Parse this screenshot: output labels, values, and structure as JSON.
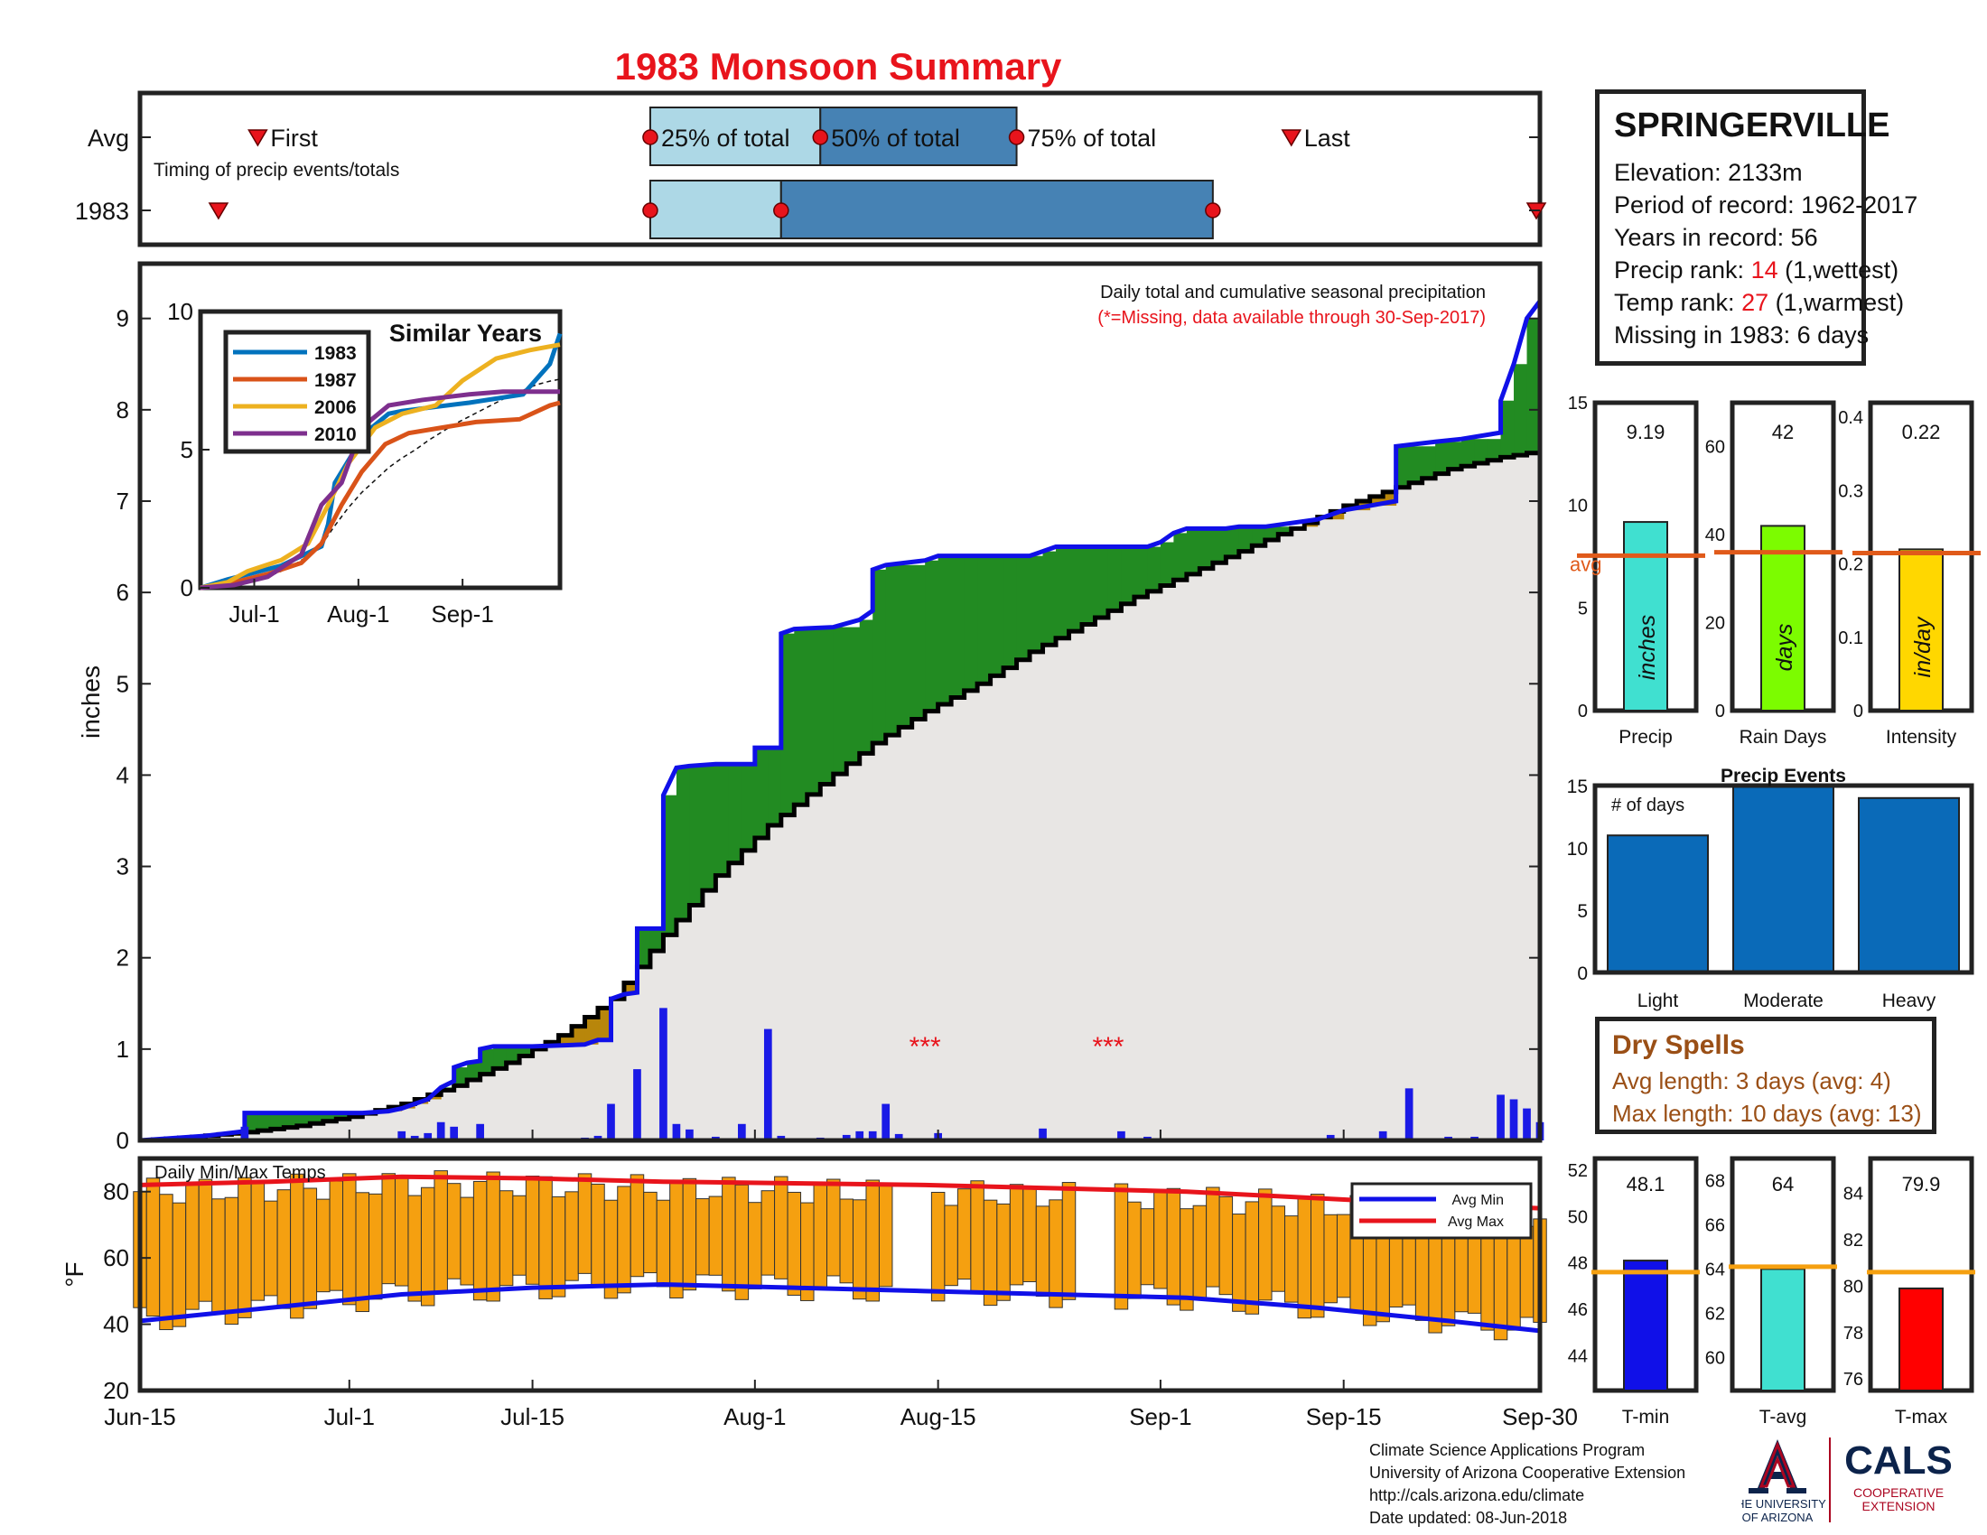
{
  "title": "1983 Monsoon Summary",
  "timing": {
    "row_labels": [
      "Avg",
      "1983"
    ],
    "first_label": "First",
    "last_label": "Last",
    "q25_label": "25% of total",
    "q50_label": "50% of total",
    "q75_label": "75% of total",
    "subtitle": "Timing of precip events/totals",
    "avg": {
      "first": 9,
      "q25": 39,
      "q50": 52,
      "q75": 67,
      "last": 88
    },
    "y1983": {
      "first": 6,
      "q25": 39,
      "q50": 49,
      "q75": 82,
      "last": 107
    }
  },
  "station": {
    "name": "SPRINGERVILLE",
    "elevation": "Elevation: 2133m",
    "period": "Period of record: 1962-2017",
    "years": "Years in record: 56",
    "precip_rank_prefix": "Precip rank: ",
    "precip_rank_value": "14",
    "precip_rank_suffix": " (1,wettest)",
    "temp_rank_prefix": "Temp rank: ",
    "temp_rank_value": "27",
    "temp_rank_suffix": " (1,warmest)",
    "missing": "Missing in 1983: 6 days"
  },
  "dry_spells": {
    "title": "Dry Spells",
    "avg_length": "Avg length: 3 days (avg: 4)",
    "max_length": "Max length: 10 days (avg: 13)"
  },
  "credits": {
    "line1": "Climate Science Applications Program",
    "line2": "University of Arizona Cooperative Extension",
    "line3": "http://cals.arizona.edu/climate",
    "line4": " Date updated: 08-Jun-2018",
    "ua_line1": "THE UNIVERSITY",
    "ua_line2": "OF ARIZONA",
    "cals": "CALS",
    "cals_sub1": "COOPERATIVE",
    "cals_sub2": "EXTENSION"
  },
  "colors": {
    "observed": "#1010e8",
    "above_avg": "#228b22",
    "below_avg": "#b8860b",
    "avg_fill": "#e8e6e4",
    "avg_line": "#000000",
    "daily_bar": "#1a1ae6",
    "temp_bar": "#f5a010",
    "avg_min": "#1010e8",
    "avg_max": "#e8141c",
    "light_blue": "#add8e6",
    "steel_blue": "#4682b4",
    "events_bar": "#0a6ab8"
  },
  "chart_data": [
    {
      "id": "cumulative_precip",
      "type": "area",
      "annotation1": "Daily total and cumulative seasonal precipitation",
      "annotation2": "(*=Missing, data available through 30-Sep-2017)",
      "ylabel": "inches",
      "ylim": [
        0,
        9.6
      ],
      "yticks": [
        0,
        1,
        2,
        3,
        4,
        5,
        6,
        7,
        8,
        9
      ],
      "xlim": [
        0,
        107
      ],
      "xticks": [
        {
          "day": 0,
          "label": "Jun-15"
        },
        {
          "day": 16,
          "label": "Jul-1"
        },
        {
          "day": 30,
          "label": "Jul-15"
        },
        {
          "day": 47,
          "label": "Aug-1"
        },
        {
          "day": 61,
          "label": "Aug-15"
        },
        {
          "day": 78,
          "label": "Sep-1"
        },
        {
          "day": 92,
          "label": "Sep-15"
        },
        {
          "day": 107,
          "label": "Sep-30"
        }
      ],
      "missing_marks": [
        {
          "day": 60,
          "label": "***"
        },
        {
          "day": 74,
          "label": "***"
        }
      ],
      "cumulative_1983": [
        [
          0,
          0
        ],
        [
          2,
          0.02
        ],
        [
          5,
          0.05
        ],
        [
          8,
          0.1
        ],
        [
          8,
          0.3
        ],
        [
          14,
          0.3
        ],
        [
          17,
          0.3
        ],
        [
          19,
          0.32
        ],
        [
          20,
          0.35
        ],
        [
          21,
          0.4
        ],
        [
          22,
          0.45
        ],
        [
          23,
          0.58
        ],
        [
          24,
          0.65
        ],
        [
          24,
          0.8
        ],
        [
          25,
          0.85
        ],
        [
          26,
          0.87
        ],
        [
          26,
          1.0
        ],
        [
          27,
          1.03
        ],
        [
          30,
          1.03
        ],
        [
          34,
          1.05
        ],
        [
          35,
          1.1
        ],
        [
          36,
          1.1
        ],
        [
          36,
          1.55
        ],
        [
          37,
          1.6
        ],
        [
          38,
          1.62
        ],
        [
          38,
          2.32
        ],
        [
          40,
          2.32
        ],
        [
          40,
          3.78
        ],
        [
          41,
          4.08
        ],
        [
          42,
          4.1
        ],
        [
          44,
          4.12
        ],
        [
          47,
          4.12
        ],
        [
          47,
          4.3
        ],
        [
          49,
          4.3
        ],
        [
          49,
          5.55
        ],
        [
          50,
          5.6
        ],
        [
          53,
          5.62
        ],
        [
          55,
          5.7
        ],
        [
          56,
          5.8
        ],
        [
          56,
          6.25
        ],
        [
          57,
          6.3
        ],
        [
          60,
          6.35
        ],
        [
          61,
          6.4
        ],
        [
          68,
          6.4
        ],
        [
          69,
          6.45
        ],
        [
          70,
          6.5
        ],
        [
          77,
          6.5
        ],
        [
          78,
          6.55
        ],
        [
          79,
          6.65
        ],
        [
          80,
          6.7
        ],
        [
          83,
          6.7
        ],
        [
          84,
          6.72
        ],
        [
          86,
          6.72
        ],
        [
          90,
          6.8
        ],
        [
          92,
          6.9
        ],
        [
          94,
          6.95
        ],
        [
          96,
          7.0
        ],
        [
          96,
          7.6
        ],
        [
          99,
          7.65
        ],
        [
          101,
          7.68
        ],
        [
          104,
          7.75
        ],
        [
          104,
          8.1
        ],
        [
          105,
          8.5
        ],
        [
          106,
          9.0
        ],
        [
          107,
          9.19
        ]
      ],
      "average": [
        [
          0,
          0
        ],
        [
          4,
          0.04
        ],
        [
          8,
          0.09
        ],
        [
          12,
          0.16
        ],
        [
          16,
          0.26
        ],
        [
          20,
          0.4
        ],
        [
          24,
          0.6
        ],
        [
          28,
          0.85
        ],
        [
          32,
          1.15
        ],
        [
          36,
          1.55
        ],
        [
          40,
          2.25
        ],
        [
          44,
          2.9
        ],
        [
          48,
          3.45
        ],
        [
          52,
          3.9
        ],
        [
          56,
          4.35
        ],
        [
          60,
          4.7
        ],
        [
          64,
          5.0
        ],
        [
          68,
          5.35
        ],
        [
          72,
          5.65
        ],
        [
          76,
          5.95
        ],
        [
          80,
          6.2
        ],
        [
          84,
          6.45
        ],
        [
          88,
          6.7
        ],
        [
          92,
          6.95
        ],
        [
          96,
          7.15
        ],
        [
          100,
          7.35
        ],
        [
          104,
          7.48
        ],
        [
          107,
          7.55
        ]
      ],
      "daily_bars": [
        [
          8,
          0.15
        ],
        [
          20,
          0.1
        ],
        [
          21,
          0.05
        ],
        [
          22,
          0.08
        ],
        [
          23,
          0.2
        ],
        [
          24,
          0.15
        ],
        [
          26,
          0.18
        ],
        [
          34,
          0.03
        ],
        [
          35,
          0.05
        ],
        [
          36,
          0.4
        ],
        [
          38,
          0.78
        ],
        [
          40,
          1.45
        ],
        [
          41,
          0.18
        ],
        [
          42,
          0.12
        ],
        [
          44,
          0.04
        ],
        [
          46,
          0.18
        ],
        [
          48,
          1.22
        ],
        [
          49,
          0.05
        ],
        [
          52,
          0.03
        ],
        [
          54,
          0.06
        ],
        [
          55,
          0.1
        ],
        [
          56,
          0.1
        ],
        [
          57,
          0.4
        ],
        [
          58,
          0.07
        ],
        [
          61,
          0.08
        ],
        [
          69,
          0.13
        ],
        [
          75,
          0.1
        ],
        [
          77,
          0.04
        ],
        [
          91,
          0.06
        ],
        [
          95,
          0.1
        ],
        [
          97,
          0.57
        ],
        [
          100,
          0.04
        ],
        [
          102,
          0.04
        ],
        [
          104,
          0.5
        ],
        [
          105,
          0.45
        ],
        [
          106,
          0.35
        ],
        [
          107,
          0.2
        ]
      ]
    },
    {
      "id": "similar_years",
      "type": "line",
      "title": "Similar Years",
      "ylim": [
        0,
        10
      ],
      "yticks": [
        0,
        5,
        10
      ],
      "xticks": [
        {
          "day": 16,
          "label": "Jul-1"
        },
        {
          "day": 47,
          "label": "Aug-1"
        },
        {
          "day": 78,
          "label": "Sep-1"
        }
      ],
      "series": [
        {
          "name": "1983",
          "color": "#0072bd",
          "points": [
            [
              0,
              0
            ],
            [
              8,
              0.3
            ],
            [
              24,
              0.8
            ],
            [
              36,
              1.5
            ],
            [
              38,
              2.3
            ],
            [
              40,
              3.8
            ],
            [
              49,
              5.6
            ],
            [
              56,
              6.3
            ],
            [
              60,
              6.4
            ],
            [
              80,
              6.7
            ],
            [
              96,
              7.0
            ],
            [
              104,
              8.1
            ],
            [
              107,
              9.2
            ]
          ]
        },
        {
          "name": "1987",
          "color": "#d95319",
          "points": [
            [
              0,
              0
            ],
            [
              10,
              0.2
            ],
            [
              20,
              0.5
            ],
            [
              30,
              0.9
            ],
            [
              36,
              1.6
            ],
            [
              42,
              3.0
            ],
            [
              48,
              4.2
            ],
            [
              55,
              5.2
            ],
            [
              62,
              5.6
            ],
            [
              72,
              5.8
            ],
            [
              82,
              6.0
            ],
            [
              95,
              6.1
            ],
            [
              104,
              6.6
            ],
            [
              107,
              6.7
            ]
          ]
        },
        {
          "name": "2006",
          "color": "#edb120",
          "points": [
            [
              0,
              0
            ],
            [
              8,
              0.2
            ],
            [
              14,
              0.6
            ],
            [
              24,
              1.0
            ],
            [
              32,
              1.6
            ],
            [
              38,
              3.0
            ],
            [
              44,
              4.5
            ],
            [
              52,
              5.8
            ],
            [
              60,
              6.3
            ],
            [
              70,
              6.6
            ],
            [
              78,
              7.5
            ],
            [
              88,
              8.3
            ],
            [
              98,
              8.6
            ],
            [
              107,
              8.8
            ]
          ]
        },
        {
          "name": "2010",
          "color": "#7e2f8e",
          "points": [
            [
              0,
              0
            ],
            [
              10,
              0.1
            ],
            [
              20,
              0.4
            ],
            [
              30,
              1.2
            ],
            [
              36,
              3.0
            ],
            [
              42,
              3.8
            ],
            [
              48,
              5.8
            ],
            [
              56,
              6.6
            ],
            [
              66,
              6.8
            ],
            [
              80,
              7.0
            ],
            [
              90,
              7.1
            ],
            [
              100,
              7.1
            ],
            [
              107,
              7.1
            ]
          ]
        }
      ],
      "average_dashed": true
    },
    {
      "id": "season_totals",
      "type": "bar",
      "panels": [
        {
          "category": "Precip",
          "value": 9.19,
          "value_label": "9.19",
          "avg": 7.55,
          "ylim": [
            0,
            15
          ],
          "yticks": [
            0,
            5,
            10,
            15
          ],
          "unit": "inches",
          "color": "#40e0d0",
          "avg_label": "avg"
        },
        {
          "category": "Rain Days",
          "value": 42,
          "value_label": "42",
          "avg": 36,
          "ylim": [
            0,
            70
          ],
          "yticks": [
            0,
            20,
            40,
            60
          ],
          "unit": "days",
          "color": "#7cfc00"
        },
        {
          "category": "Intensity",
          "value": 0.22,
          "value_label": "0.22",
          "avg": 0.215,
          "ylim": [
            0,
            0.42
          ],
          "yticks": [
            0,
            0.1,
            0.2,
            0.3,
            0.4
          ],
          "unit": "in/day",
          "color": "#ffd700"
        }
      ]
    },
    {
      "id": "precip_events",
      "type": "bar",
      "title": "Precip Events",
      "ylabel_inner": "# of days",
      "categories": [
        "Light",
        "Moderate",
        "Heavy"
      ],
      "values": [
        11,
        15,
        14
      ],
      "ylim": [
        0,
        15
      ],
      "yticks": [
        0,
        5,
        10,
        15
      ]
    },
    {
      "id": "daily_temps",
      "type": "bar",
      "title": "Daily Min/Max Temps",
      "ylabel": "°F",
      "ylim": [
        20,
        90
      ],
      "yticks": [
        20,
        40,
        60,
        80
      ],
      "legend": [
        {
          "name": "Avg Min",
          "color": "#1010e8"
        },
        {
          "name": "Avg Max",
          "color": "#e8141c"
        }
      ],
      "avg_max": [
        [
          0,
          82
        ],
        [
          10,
          83
        ],
        [
          20,
          84.5
        ],
        [
          30,
          84
        ],
        [
          40,
          83
        ],
        [
          50,
          82.5
        ],
        [
          60,
          82
        ],
        [
          70,
          81
        ],
        [
          80,
          80
        ],
        [
          90,
          78
        ],
        [
          100,
          76
        ],
        [
          107,
          75
        ]
      ],
      "avg_min": [
        [
          0,
          41
        ],
        [
          10,
          45
        ],
        [
          20,
          49
        ],
        [
          30,
          51
        ],
        [
          40,
          52
        ],
        [
          50,
          51
        ],
        [
          60,
          50
        ],
        [
          70,
          49
        ],
        [
          80,
          48
        ],
        [
          90,
          45
        ],
        [
          100,
          41
        ],
        [
          107,
          38
        ]
      ],
      "missing_ranges": [
        [
          58,
          60
        ],
        [
          72,
          74
        ]
      ]
    },
    {
      "id": "season_temps",
      "type": "bar",
      "panels": [
        {
          "category": "T-min",
          "value": 48.1,
          "value_label": "48.1",
          "avg": 47.6,
          "ylim": [
            42.5,
            52.5
          ],
          "yticks": [
            44,
            46,
            48,
            50,
            52
          ],
          "color": "#1010e8"
        },
        {
          "category": "T-avg",
          "value": 64,
          "value_label": "64",
          "avg": 64.1,
          "ylim": [
            58.5,
            69
          ],
          "yticks": [
            60,
            62,
            64,
            66,
            68
          ],
          "color": "#40e0d0"
        },
        {
          "category": "T-max",
          "value": 79.9,
          "value_label": "79.9",
          "avg": 80.6,
          "ylim": [
            75.5,
            85.5
          ],
          "yticks": [
            76,
            78,
            80,
            82,
            84
          ],
          "color": "#ff0000"
        }
      ]
    }
  ]
}
